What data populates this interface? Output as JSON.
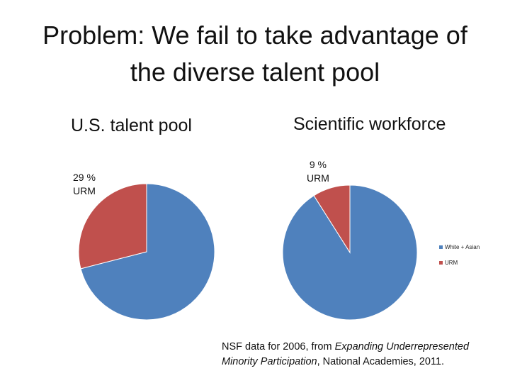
{
  "slide": {
    "title_line1": "Problem:  We fail to take advantage of",
    "title_line2": "the diverse talent pool"
  },
  "chart_data": [
    {
      "type": "pie",
      "title": "U.S. talent pool",
      "categories": [
        "White + Asian",
        "URM"
      ],
      "values": [
        71,
        29
      ],
      "colors": [
        "#4f81bd",
        "#c0504d"
      ],
      "data_label": {
        "line1": "29 %",
        "line2": "URM"
      },
      "legend": null
    },
    {
      "type": "pie",
      "title": "Scientific workforce",
      "categories": [
        "White + Asian",
        "URM"
      ],
      "values": [
        91,
        9
      ],
      "colors": [
        "#4f81bd",
        "#c0504d"
      ],
      "data_label": {
        "line1": "9 %",
        "line2": "URM"
      },
      "legend": "right"
    }
  ],
  "legend": {
    "items": [
      {
        "label": "White + Asian",
        "color": "#4f81bd"
      },
      {
        "label": "URM",
        "color": "#c0504d"
      }
    ]
  },
  "source": {
    "prefix": "NSF data for 2006, from ",
    "italic1": "Expanding Underrepresented",
    "italic2": "Minority Participation",
    "suffix": ", National Academies, 2011."
  }
}
